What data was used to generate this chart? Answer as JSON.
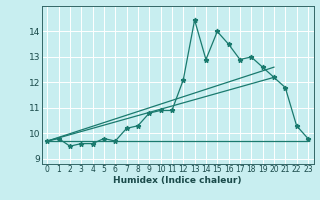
{
  "xlabel": "Humidex (Indice chaleur)",
  "bg_color": "#c8eef0",
  "grid_color": "#ffffff",
  "line_color": "#1a7a6e",
  "xlim": [
    -0.5,
    23.5
  ],
  "ylim": [
    8.8,
    15.0
  ],
  "yticks": [
    9,
    10,
    11,
    12,
    13,
    14
  ],
  "xticks": [
    0,
    1,
    2,
    3,
    4,
    5,
    6,
    7,
    8,
    9,
    10,
    11,
    12,
    13,
    14,
    15,
    16,
    17,
    18,
    19,
    20,
    21,
    22,
    23
  ],
  "series": [
    [
      0,
      9.7
    ],
    [
      1,
      9.8
    ],
    [
      2,
      9.5
    ],
    [
      3,
      9.6
    ],
    [
      4,
      9.6
    ],
    [
      5,
      9.8
    ],
    [
      6,
      9.7
    ],
    [
      7,
      10.2
    ],
    [
      8,
      10.3
    ],
    [
      9,
      10.8
    ],
    [
      10,
      10.9
    ],
    [
      11,
      10.9
    ],
    [
      12,
      12.1
    ],
    [
      13,
      14.45
    ],
    [
      14,
      12.9
    ],
    [
      15,
      14.0
    ],
    [
      16,
      13.5
    ],
    [
      17,
      12.9
    ],
    [
      18,
      13.0
    ],
    [
      19,
      12.6
    ],
    [
      20,
      12.2
    ],
    [
      21,
      11.8
    ],
    [
      22,
      10.3
    ],
    [
      23,
      9.8
    ]
  ],
  "line_flat": [
    [
      0,
      9.7
    ],
    [
      10,
      9.7
    ],
    [
      23,
      9.7
    ]
  ],
  "line_rise1": [
    [
      0,
      9.7
    ],
    [
      20,
      12.2
    ]
  ],
  "line_rise2": [
    [
      0,
      9.7
    ],
    [
      20,
      12.6
    ]
  ]
}
